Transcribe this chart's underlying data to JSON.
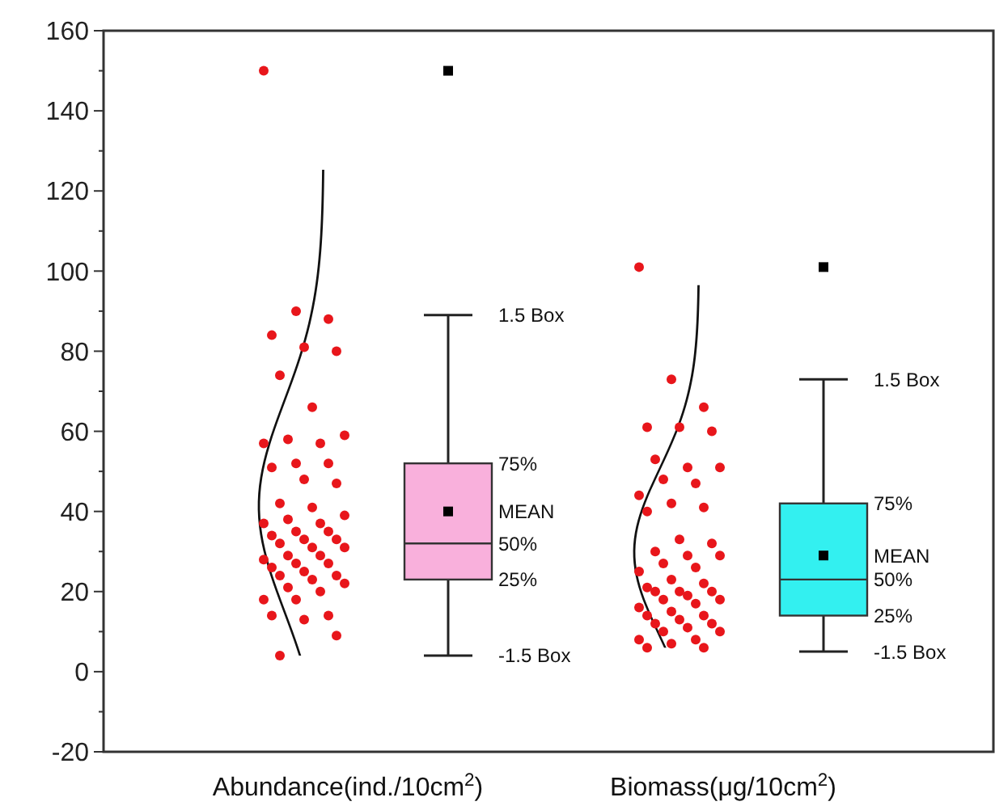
{
  "chart_data": {
    "type": "box",
    "categories": [
      "Abundance(ind./10cm$^{2}$)",
      "Biomass(μg/10cm$^{2}$)"
    ],
    "colors": [
      "#f9b0dc",
      "#33f0f0"
    ],
    "boxes": [
      {
        "low": 4,
        "q1": 23,
        "median": 32,
        "q3": 52,
        "high": 89,
        "mean": 40,
        "outliers": [
          150
        ]
      },
      {
        "low": 5,
        "q1": 14,
        "median": 23,
        "q3": 42,
        "high": 73,
        "mean": 29,
        "outliers": [
          101
        ]
      }
    ],
    "series": [
      {
        "type": "scatter",
        "color": "#e8161b",
        "x": [
          "Abundance(ind./10cm$^{2}$)",
          "Abundance(ind./10cm$^{2}$)",
          "Abundance(ind./10cm$^{2}$)",
          "Abundance(ind./10cm$^{2}$)",
          "Abundance(ind./10cm$^{2}$)",
          "Abundance(ind./10cm$^{2}$)",
          "Abundance(ind./10cm$^{2}$)",
          "Abundance(ind./10cm$^{2}$)",
          "Abundance(ind./10cm$^{2}$)",
          "Abundance(ind./10cm$^{2}$)",
          "Abundance(ind./10cm$^{2}$)",
          "Abundance(ind./10cm$^{2}$)",
          "Abundance(ind./10cm$^{2}$)",
          "Abundance(ind./10cm$^{2}$)",
          "Abundance(ind./10cm$^{2}$)",
          "Abundance(ind./10cm$^{2}$)",
          "Abundance(ind./10cm$^{2}$)",
          "Abundance(ind./10cm$^{2}$)",
          "Abundance(ind./10cm$^{2}$)",
          "Abundance(ind./10cm$^{2}$)",
          "Abundance(ind./10cm$^{2}$)",
          "Abundance(ind./10cm$^{2}$)",
          "Abundance(ind./10cm$^{2}$)",
          "Abundance(ind./10cm$^{2}$)",
          "Abundance(ind./10cm$^{2}$)",
          "Abundance(ind./10cm$^{2}$)",
          "Abundance(ind./10cm$^{2}$)",
          "Abundance(ind./10cm$^{2}$)",
          "Abundance(ind./10cm$^{2}$)",
          "Abundance(ind./10cm$^{2}$)",
          "Abundance(ind./10cm$^{2}$)",
          "Abundance(ind./10cm$^{2}$)",
          "Abundance(ind./10cm$^{2}$)",
          "Abundance(ind./10cm$^{2}$)",
          "Abundance(ind./10cm$^{2}$)",
          "Abundance(ind./10cm$^{2}$)",
          "Abundance(ind./10cm$^{2}$)",
          "Abundance(ind./10cm$^{2}$)",
          "Abundance(ind./10cm$^{2}$)",
          "Abundance(ind./10cm$^{2}$)",
          "Abundance(ind./10cm$^{2}$)",
          "Abundance(ind./10cm$^{2}$)",
          "Abundance(ind./10cm$^{2}$)",
          "Abundance(ind./10cm$^{2}$)",
          "Abundance(ind./10cm$^{2}$)",
          "Abundance(ind./10cm$^{2}$)",
          "Abundance(ind./10cm$^{2}$)",
          "Abundance(ind./10cm$^{2}$)",
          "Abundance(ind./10cm$^{2}$)",
          "Abundance(ind./10cm$^{2}$)",
          "Abundance(ind./10cm$^{2}$)"
        ],
        "values": [
          150,
          90,
          88,
          84,
          81,
          80,
          74,
          66,
          59,
          58,
          57,
          57,
          52,
          52,
          51,
          48,
          47,
          42,
          41,
          39,
          38,
          37,
          37,
          35,
          35,
          34,
          33,
          33,
          32,
          31,
          31,
          29,
          29,
          28,
          27,
          27,
          26,
          25,
          24,
          24,
          23,
          22,
          21,
          20,
          18,
          18,
          14,
          14,
          13,
          9,
          4
        ]
      },
      {
        "type": "scatter",
        "color": "#e8161b",
        "x": [
          "Biomass(μg/10cm$^{2}$)",
          "Biomass(μg/10cm$^{2}$)",
          "Biomass(μg/10cm$^{2}$)",
          "Biomass(μg/10cm$^{2}$)",
          "Biomass(μg/10cm$^{2}$)",
          "Biomass(μg/10cm$^{2}$)",
          "Biomass(μg/10cm$^{2}$)",
          "Biomass(μg/10cm$^{2}$)",
          "Biomass(μg/10cm$^{2}$)",
          "Biomass(μg/10cm$^{2}$)",
          "Biomass(μg/10cm$^{2}$)",
          "Biomass(μg/10cm$^{2}$)",
          "Biomass(μg/10cm$^{2}$)",
          "Biomass(μg/10cm$^{2}$)",
          "Biomass(μg/10cm$^{2}$)",
          "Biomass(μg/10cm$^{2}$)",
          "Biomass(μg/10cm$^{2}$)",
          "Biomass(μg/10cm$^{2}$)",
          "Biomass(μg/10cm$^{2}$)",
          "Biomass(μg/10cm$^{2}$)",
          "Biomass(μg/10cm$^{2}$)",
          "Biomass(μg/10cm$^{2}$)",
          "Biomass(μg/10cm$^{2}$)",
          "Biomass(μg/10cm$^{2}$)",
          "Biomass(μg/10cm$^{2}$)",
          "Biomass(μg/10cm$^{2}$)",
          "Biomass(μg/10cm$^{2}$)",
          "Biomass(μg/10cm$^{2}$)",
          "Biomass(μg/10cm$^{2}$)",
          "Biomass(μg/10cm$^{2}$)",
          "Biomass(μg/10cm$^{2}$)",
          "Biomass(μg/10cm$^{2}$)",
          "Biomass(μg/10cm$^{2}$)",
          "Biomass(μg/10cm$^{2}$)",
          "Biomass(μg/10cm$^{2}$)",
          "Biomass(μg/10cm$^{2}$)",
          "Biomass(μg/10cm$^{2}$)",
          "Biomass(μg/10cm$^{2}$)",
          "Biomass(μg/10cm$^{2}$)",
          "Biomass(μg/10cm$^{2}$)",
          "Biomass(μg/10cm$^{2}$)",
          "Biomass(μg/10cm$^{2}$)",
          "Biomass(μg/10cm$^{2}$)",
          "Biomass(μg/10cm$^{2}$)",
          "Biomass(μg/10cm$^{2}$)",
          "Biomass(μg/10cm$^{2}$)",
          "Biomass(μg/10cm$^{2}$)",
          "Biomass(μg/10cm$^{2}$)"
        ],
        "values": [
          101,
          73,
          66,
          61,
          61,
          60,
          53,
          51,
          51,
          48,
          47,
          44,
          42,
          41,
          40,
          33,
          32,
          30,
          29,
          29,
          27,
          26,
          25,
          23,
          22,
          21,
          20,
          20,
          20,
          19,
          18,
          18,
          17,
          16,
          15,
          14,
          14,
          13,
          12,
          12,
          11,
          10,
          10,
          8,
          8,
          7,
          6,
          6
        ]
      }
    ],
    "annotations": [
      "1.5 Box",
      "75%",
      "MEAN",
      "50%",
      "25%",
      "-1.5 Box",
      "1.5 Box",
      "75%",
      "MEAN",
      "50%",
      "25%",
      "-1.5 Box"
    ],
    "ylim": [
      -20,
      160
    ],
    "yticks": [
      -20,
      {
        "value": -10,
        "label": null
      },
      0,
      {
        "value": 10,
        "label": null
      },
      20,
      {
        "value": 30,
        "label": null
      },
      40,
      {
        "value": 50,
        "label": null
      },
      60,
      {
        "value": 70,
        "label": null
      },
      80,
      {
        "value": 90,
        "label": null
      },
      100,
      {
        "value": 110,
        "label": null
      },
      120,
      {
        "value": 130,
        "label": null
      },
      140,
      {
        "value": 150,
        "label": null
      },
      160
    ],
    "grid": false,
    "marker": "circle"
  }
}
